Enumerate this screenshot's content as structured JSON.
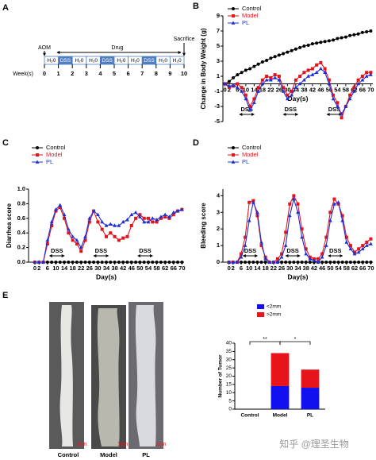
{
  "panel_labels": [
    "A",
    "B",
    "C",
    "D",
    "E"
  ],
  "timeline": {
    "aom": "AOM",
    "drug": "Drug",
    "sacrifice": "Sacrifice",
    "week_label": "Week(s)",
    "weeks": [
      "0",
      "1",
      "2",
      "3",
      "4",
      "5",
      "6",
      "7",
      "8",
      "9",
      "10"
    ],
    "cells": [
      "H₂0",
      "DSS",
      "H₂0",
      "H₂0",
      "DSS",
      "H₂0",
      "H₂0",
      "DSS",
      "H₂0",
      "H₂0"
    ]
  },
  "photos": {
    "labels": [
      "Control",
      "Model",
      "PL"
    ],
    "scale": "1cm"
  },
  "watermark": "知乎 @理圣生物",
  "chart_data": [
    {
      "type": "line",
      "xlabel": "Day(s)",
      "ylabel": "Change in Body Weight (g)",
      "legend": "upper left",
      "x": [
        0,
        2,
        4,
        6,
        8,
        10,
        12,
        14,
        16,
        18,
        20,
        22,
        24,
        26,
        28,
        30,
        32,
        34,
        36,
        38,
        40,
        42,
        44,
        46,
        48,
        50,
        52,
        54,
        56,
        58,
        60,
        62,
        64,
        66,
        68,
        70
      ],
      "xlim": [
        -1,
        71
      ],
      "xticks": [
        0,
        2,
        6,
        10,
        14,
        18,
        22,
        26,
        30,
        34,
        38,
        42,
        46,
        50,
        54,
        58,
        62,
        66,
        70
      ],
      "ylim": [
        -5,
        9
      ],
      "yticks": [
        -5,
        -3,
        -1,
        1,
        3,
        5,
        7,
        9
      ],
      "annotations": [
        {
          "text": "DSS",
          "x": [
            7,
            14
          ]
        },
        {
          "text": "DSS",
          "x": [
            28,
            35
          ]
        },
        {
          "text": "DSS",
          "x": [
            49,
            56
          ]
        }
      ],
      "series": [
        {
          "name": "Control",
          "color": "#000000",
          "marker": "circle",
          "values": [
            0,
            0.3,
            0.8,
            1.2,
            1.5,
            1.8,
            2.0,
            2.3,
            2.6,
            2.9,
            3.1,
            3.4,
            3.6,
            3.8,
            4.0,
            4.2,
            4.4,
            4.6,
            4.8,
            5.0,
            5.1,
            5.3,
            5.4,
            5.5,
            5.6,
            5.7,
            5.8,
            6.0,
            6.1,
            6.2,
            6.4,
            6.5,
            6.6,
            6.8,
            6.9,
            7.0
          ]
        },
        {
          "name": "Model",
          "color": "#e3141b",
          "marker": "square",
          "values": [
            0,
            -0.5,
            -0.3,
            0,
            -0.5,
            -1.5,
            -3.0,
            -2.0,
            -0.5,
            0.5,
            1.0,
            0.8,
            1.2,
            1.0,
            -0.5,
            -1.5,
            -1.0,
            0.5,
            1.0,
            1.5,
            1.8,
            2.0,
            2.5,
            2.8,
            2.0,
            0.5,
            -1.5,
            -2.5,
            -4.5,
            -3.0,
            -1.5,
            -0.5,
            0.5,
            1.0,
            1.5,
            1.5
          ]
        },
        {
          "name": "PL",
          "color": "#1f2fd0",
          "marker": "triangle",
          "values": [
            0,
            -0.3,
            -0.2,
            -0.5,
            -1.0,
            -2.0,
            -3.5,
            -2.5,
            -1.0,
            0,
            0.5,
            0.5,
            0.8,
            0.5,
            -1.0,
            -2.0,
            -1.5,
            -0.5,
            0,
            0.5,
            1.0,
            1.2,
            1.5,
            2.0,
            1.5,
            0,
            -2.0,
            -3.0,
            -4.0,
            -3.0,
            -2.0,
            -1.0,
            0,
            0.5,
            1.0,
            1.2
          ]
        }
      ]
    },
    {
      "type": "line",
      "xlabel": "Day(s)",
      "ylabel": "Diarrhea score",
      "legend": "upper left",
      "x": [
        0,
        2,
        4,
        6,
        8,
        10,
        12,
        14,
        16,
        18,
        20,
        22,
        24,
        26,
        28,
        30,
        32,
        34,
        36,
        38,
        40,
        42,
        44,
        46,
        48,
        50,
        52,
        54,
        56,
        58,
        60,
        62,
        64,
        66,
        68,
        70
      ],
      "xlim": [
        -3,
        71
      ],
      "xticks": [
        0,
        2,
        6,
        10,
        14,
        18,
        22,
        26,
        30,
        34,
        38,
        42,
        46,
        50,
        54,
        58,
        62,
        66,
        70
      ],
      "ylim": [
        0,
        1.0
      ],
      "yticks": [
        {
          "value": 0,
          "label": "0.0"
        },
        0.2,
        0.4,
        0.6,
        0.8,
        {
          "value": 1,
          "label": "1.0"
        }
      ],
      "annotations": [
        {
          "text": "DSS",
          "x": [
            7,
            14
          ]
        },
        {
          "text": "DSS",
          "x": [
            28,
            35
          ]
        },
        {
          "text": "DSS",
          "x": [
            49,
            56
          ]
        }
      ],
      "series": [
        {
          "name": "Control",
          "color": "#000000",
          "marker": "circle",
          "values": [
            0,
            0,
            0,
            0,
            0,
            0,
            0,
            0,
            0,
            0,
            0,
            0,
            0,
            0,
            0,
            0,
            0,
            0,
            0,
            0,
            0,
            0,
            0,
            0,
            0,
            0,
            0,
            0,
            0,
            0,
            0,
            0,
            0,
            0,
            0,
            0
          ]
        },
        {
          "name": "Model",
          "color": "#e3141b",
          "marker": "square",
          "values": [
            0,
            0,
            0,
            0.25,
            0.5,
            0.7,
            0.75,
            0.6,
            0.4,
            0.3,
            0.25,
            0.15,
            0.3,
            0.55,
            0.7,
            0.55,
            0.45,
            0.35,
            0.4,
            0.35,
            0.3,
            0.33,
            0.35,
            0.5,
            0.6,
            0.65,
            0.6,
            0.6,
            0.55,
            0.55,
            0.6,
            0.62,
            0.6,
            0.65,
            0.7,
            0.72
          ]
        },
        {
          "name": "PL",
          "color": "#1f2fd0",
          "marker": "triangle",
          "values": [
            0,
            0,
            0,
            0.3,
            0.55,
            0.72,
            0.78,
            0.65,
            0.45,
            0.35,
            0.3,
            0.2,
            0.35,
            0.6,
            0.7,
            0.65,
            0.55,
            0.5,
            0.52,
            0.5,
            0.5,
            0.55,
            0.58,
            0.65,
            0.68,
            0.62,
            0.55,
            0.55,
            0.6,
            0.58,
            0.62,
            0.65,
            0.62,
            0.68,
            0.7,
            0.72
          ]
        }
      ]
    },
    {
      "type": "line",
      "xlabel": "Day(s)",
      "ylabel": "Bleeding score",
      "legend": "upper left",
      "x": [
        0,
        2,
        4,
        6,
        8,
        10,
        12,
        14,
        16,
        18,
        20,
        22,
        24,
        26,
        28,
        30,
        32,
        34,
        36,
        38,
        40,
        42,
        44,
        46,
        48,
        50,
        52,
        54,
        56,
        58,
        60,
        62,
        64,
        66,
        68,
        70
      ],
      "xlim": [
        -3,
        71
      ],
      "xticks": [
        0,
        2,
        6,
        10,
        14,
        18,
        22,
        26,
        30,
        34,
        38,
        42,
        46,
        50,
        54,
        58,
        62,
        66,
        70
      ],
      "ylim": [
        0,
        4.4
      ],
      "yticks": [
        0,
        1,
        2,
        3,
        4
      ],
      "annotations": [
        {
          "text": "DSS",
          "x": [
            7,
            14
          ]
        },
        {
          "text": "DSS",
          "x": [
            28,
            35
          ]
        },
        {
          "text": "DSS",
          "x": [
            49,
            56
          ]
        }
      ],
      "series": [
        {
          "name": "Control",
          "color": "#000000",
          "marker": "circle",
          "values": [
            0,
            0,
            0,
            0,
            0,
            0,
            0,
            0,
            0,
            0,
            0,
            0,
            0,
            0,
            0,
            0,
            0,
            0,
            0,
            0,
            0,
            0,
            0,
            0,
            0,
            0,
            0,
            0,
            0,
            0,
            0,
            0,
            0,
            0,
            0,
            0
          ]
        },
        {
          "name": "Model",
          "color": "#e3141b",
          "marker": "square",
          "values": [
            0,
            0,
            0,
            0.5,
            1.5,
            3.6,
            3.7,
            2.8,
            1.0,
            0.3,
            0,
            0,
            0.2,
            0.5,
            1.8,
            3.5,
            4.0,
            3.5,
            2.0,
            0.8,
            0.3,
            0.2,
            0.2,
            0.5,
            1.5,
            3.0,
            3.8,
            3.5,
            2.8,
            1.5,
            1.0,
            0.6,
            0.8,
            1.0,
            1.2,
            1.4
          ]
        },
        {
          "name": "PL",
          "color": "#1f2fd0",
          "marker": "triangle",
          "values": [
            0,
            0,
            0,
            0.3,
            1.0,
            2.5,
            3.6,
            3.0,
            1.2,
            0.2,
            0,
            0,
            0,
            0.3,
            1.0,
            2.8,
            3.8,
            3.0,
            1.5,
            0.5,
            0.2,
            0.1,
            0,
            0.3,
            1.0,
            2.5,
            3.5,
            3.6,
            2.5,
            1.2,
            0.8,
            0.5,
            0.6,
            0.8,
            1.0,
            1.1
          ]
        }
      ]
    },
    {
      "type": "stacked_bar",
      "ylabel": "Number of Tumor",
      "legend": "top",
      "categories": [
        "Control",
        "Model",
        "PL"
      ],
      "ylim": [
        0,
        40
      ],
      "yticks": [
        0,
        5,
        10,
        15,
        20,
        25,
        30,
        35,
        40
      ],
      "annotations": [
        "**",
        "*"
      ],
      "series": [
        {
          "name": "<2mm",
          "color": "#1010f0",
          "values": [
            0,
            14,
            13
          ]
        },
        {
          "name": ">2mm",
          "color": "#e8141b",
          "values": [
            0,
            20,
            11
          ]
        }
      ]
    }
  ]
}
